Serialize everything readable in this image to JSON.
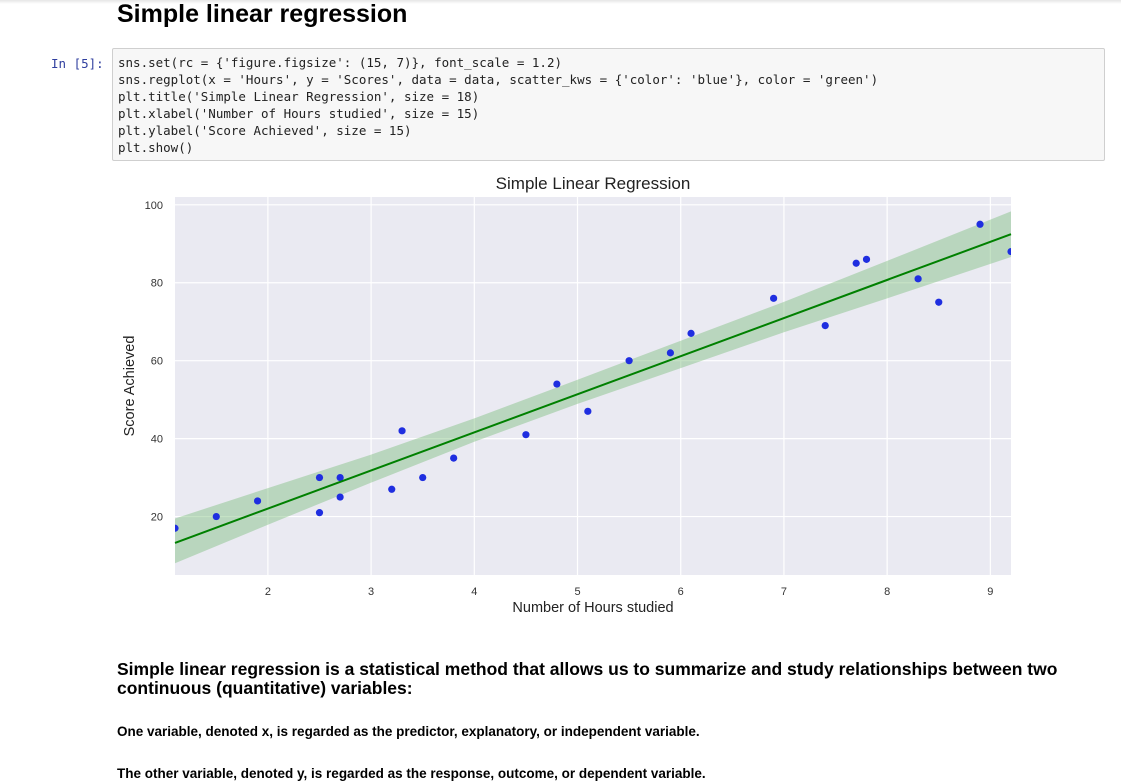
{
  "notebook": {
    "section_title": "Simple linear regression",
    "cell_prompt": "In [5]:",
    "code_lines": [
      "sns.set(rc = {'figure.figsize': (15, 7)}, font_scale = 1.2)",
      "sns.regplot(x = 'Hours', y = 'Scores', data = data, scatter_kws = {'color': 'blue'}, color = 'green')",
      "plt.title('Simple Linear Regression', size = 18)",
      "plt.xlabel('Number of Hours studied', size = 15)",
      "plt.ylabel('Score Achieved', size = 15)",
      "plt.show()"
    ]
  },
  "chart_data": {
    "type": "scatter",
    "title": "Simple Linear Regression",
    "xlabel": "Number of Hours studied",
    "ylabel": "Score Achieved",
    "xlim": [
      1.1,
      9.2
    ],
    "ylim": [
      5,
      102
    ],
    "xticks": [
      2,
      3,
      4,
      5,
      6,
      7,
      8,
      9
    ],
    "yticks": [
      20,
      40,
      60,
      80,
      100
    ],
    "grid": true,
    "point_color": "#1f2ee0",
    "line_color": "#008000",
    "band_color": "#7fbf7f",
    "background_color": "#eaeaf2",
    "points": [
      [
        1.1,
        17
      ],
      [
        1.5,
        20
      ],
      [
        1.9,
        24
      ],
      [
        2.5,
        21
      ],
      [
        2.5,
        30
      ],
      [
        2.7,
        25
      ],
      [
        2.7,
        30
      ],
      [
        3.2,
        27
      ],
      [
        3.3,
        42
      ],
      [
        3.5,
        30
      ],
      [
        3.8,
        35
      ],
      [
        4.5,
        41
      ],
      [
        4.8,
        54
      ],
      [
        5.1,
        47
      ],
      [
        5.5,
        60
      ],
      [
        5.9,
        62
      ],
      [
        6.1,
        67
      ],
      [
        6.9,
        76
      ],
      [
        7.4,
        69
      ],
      [
        7.7,
        85
      ],
      [
        7.8,
        86
      ],
      [
        8.3,
        81
      ],
      [
        8.5,
        75
      ],
      [
        8.9,
        95
      ],
      [
        9.2,
        88
      ]
    ],
    "regression": {
      "slope": 9.78,
      "intercept": 2.48
    },
    "ci_band": [
      [
        1.1,
        8.0,
        19.5
      ],
      [
        2.0,
        17.9,
        27.3
      ],
      [
        3.0,
        28.7,
        35.9
      ],
      [
        4.0,
        39.2,
        45.2
      ],
      [
        5.0,
        48.9,
        55.1
      ],
      [
        6.0,
        58.1,
        65.1
      ],
      [
        7.0,
        67.3,
        75.1
      ],
      [
        8.0,
        76.0,
        85.6
      ],
      [
        9.2,
        86.6,
        98.3
      ]
    ]
  },
  "markdown": {
    "heading": "Simple linear regression is a statistical method that allows us to summarize and study relationships between two continuous (quantitative) variables:",
    "para1": "One variable, denoted x, is regarded as the predictor, explanatory, or independent variable.",
    "para2": "The other variable, denoted y, is regarded as the response, outcome, or dependent variable."
  }
}
